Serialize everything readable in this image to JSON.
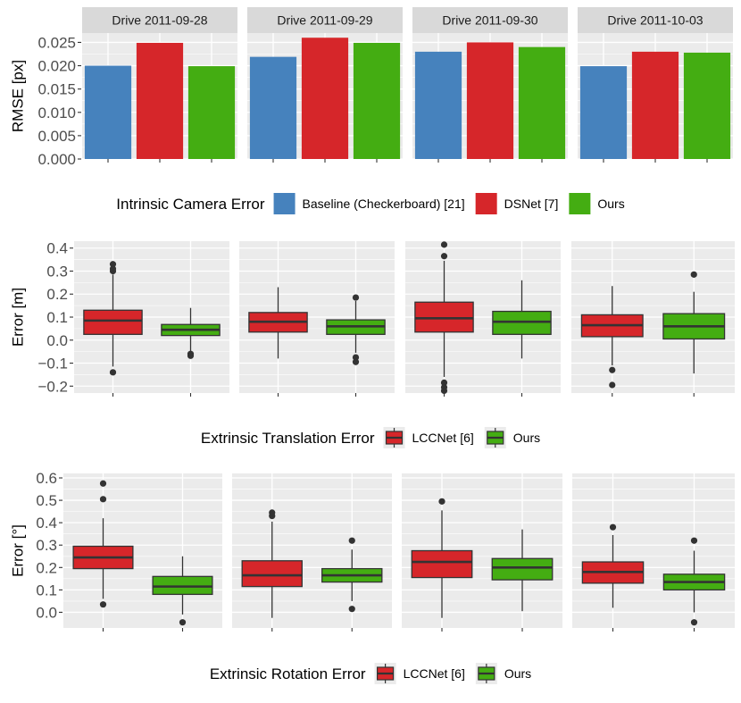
{
  "colors": {
    "baseline": "#4682bd",
    "dsnet": "#d6262a",
    "lccnet": "#d6262a",
    "ours": "#44ad12",
    "panel_bg": "#ebebeb",
    "strip_bg": "#d9d9d9",
    "grid": "#ffffff"
  },
  "chart_data": [
    {
      "type": "bar",
      "ylabel": "RMSE [px]",
      "ylim": [
        0,
        0.027
      ],
      "yticks": [
        0.0,
        0.005,
        0.01,
        0.015,
        0.02,
        0.025
      ],
      "ytick_labels": [
        "0.000",
        "0.005",
        "0.010",
        "0.015",
        "0.020",
        "0.025"
      ],
      "facets": [
        "Drive 2011-09-28",
        "Drive 2011-09-29",
        "Drive 2011-09-30",
        "Drive 2011-10-03"
      ],
      "legend_title": "Intrinsic Camera Error",
      "series": [
        {
          "name": "Baseline (Checkerboard) [21]",
          "color_key": "baseline",
          "values": [
            0.02,
            0.0219,
            0.023,
            0.0199
          ]
        },
        {
          "name": "DSNet [7]",
          "color_key": "dsnet",
          "values": [
            0.0249,
            0.026,
            0.025,
            0.023
          ]
        },
        {
          "name": "Ours",
          "color_key": "ours",
          "values": [
            0.0199,
            0.0249,
            0.024,
            0.0228
          ]
        }
      ]
    },
    {
      "type": "box",
      "ylabel": "Error [m]",
      "ylim": [
        -0.23,
        0.43
      ],
      "yticks": [
        -0.2,
        -0.1,
        0.0,
        0.1,
        0.2,
        0.3,
        0.4
      ],
      "ytick_labels": [
        "−0.2",
        "−0.1",
        "0.0",
        "0.1",
        "0.2",
        "0.3",
        "0.4"
      ],
      "facets": [
        "Drive 2011-09-28",
        "Drive 2011-09-29",
        "Drive 2011-09-30",
        "Drive 2011-10-03"
      ],
      "legend_title": "Extrinsic Translation Error",
      "series": [
        {
          "name": "LCCNet [6]",
          "color_key": "lccnet",
          "boxes": [
            {
              "q1": 0.025,
              "median": 0.085,
              "q3": 0.13,
              "lower": -0.115,
              "upper": 0.285,
              "outliers": [
                0.33,
                0.31,
                0.3,
                -0.14
              ]
            },
            {
              "q1": 0.035,
              "median": 0.08,
              "q3": 0.12,
              "lower": -0.08,
              "upper": 0.23,
              "outliers": []
            },
            {
              "q1": 0.035,
              "median": 0.095,
              "q3": 0.165,
              "lower": -0.16,
              "upper": 0.345,
              "outliers": [
                0.415,
                0.365,
                -0.185,
                -0.205,
                -0.22
              ]
            },
            {
              "q1": 0.015,
              "median": 0.065,
              "q3": 0.11,
              "lower": -0.11,
              "upper": 0.235,
              "outliers": [
                -0.13,
                -0.195
              ]
            }
          ]
        },
        {
          "name": "Ours",
          "color_key": "ours",
          "boxes": [
            {
              "q1": 0.02,
              "median": 0.045,
              "q3": 0.068,
              "lower": -0.05,
              "upper": 0.14,
              "outliers": [
                -0.06,
                -0.068
              ]
            },
            {
              "q1": 0.025,
              "median": 0.06,
              "q3": 0.088,
              "lower": -0.055,
              "upper": 0.17,
              "outliers": [
                0.185,
                -0.075,
                -0.095
              ]
            },
            {
              "q1": 0.025,
              "median": 0.08,
              "q3": 0.125,
              "lower": -0.08,
              "upper": 0.26,
              "outliers": []
            },
            {
              "q1": 0.005,
              "median": 0.06,
              "q3": 0.115,
              "lower": -0.145,
              "upper": 0.21,
              "outliers": [
                0.285
              ]
            }
          ]
        }
      ]
    },
    {
      "type": "box",
      "ylabel": "Error [°]",
      "ylim": [
        -0.07,
        0.62
      ],
      "yticks": [
        0.0,
        0.1,
        0.2,
        0.3,
        0.4,
        0.5,
        0.6
      ],
      "ytick_labels": [
        "0.0",
        "0.1",
        "0.2",
        "0.3",
        "0.4",
        "0.5",
        "0.6"
      ],
      "facets": [
        "Drive 2011-09-28",
        "Drive 2011-09-29",
        "Drive 2011-09-30",
        "Drive 2011-10-03"
      ],
      "legend_title": "Extrinsic Rotation Error",
      "series": [
        {
          "name": "LCCNet [6]",
          "color_key": "lccnet",
          "boxes": [
            {
              "q1": 0.195,
              "median": 0.245,
              "q3": 0.295,
              "lower": 0.06,
              "upper": 0.42,
              "outliers": [
                0.575,
                0.505,
                0.035
              ]
            },
            {
              "q1": 0.115,
              "median": 0.165,
              "q3": 0.23,
              "lower": -0.025,
              "upper": 0.405,
              "outliers": [
                0.445,
                0.43
              ]
            },
            {
              "q1": 0.155,
              "median": 0.225,
              "q3": 0.275,
              "lower": -0.025,
              "upper": 0.455,
              "outliers": [
                0.495
              ]
            },
            {
              "q1": 0.13,
              "median": 0.18,
              "q3": 0.225,
              "lower": 0.02,
              "upper": 0.345,
              "outliers": [
                0.38
              ]
            }
          ]
        },
        {
          "name": "Ours",
          "color_key": "ours",
          "boxes": [
            {
              "q1": 0.08,
              "median": 0.115,
              "q3": 0.16,
              "lower": -0.01,
              "upper": 0.25,
              "outliers": [
                -0.045
              ]
            },
            {
              "q1": 0.135,
              "median": 0.165,
              "q3": 0.195,
              "lower": 0.05,
              "upper": 0.28,
              "outliers": [
                0.32,
                0.015
              ]
            },
            {
              "q1": 0.145,
              "median": 0.2,
              "q3": 0.24,
              "lower": 0.005,
              "upper": 0.37,
              "outliers": []
            },
            {
              "q1": 0.1,
              "median": 0.135,
              "q3": 0.17,
              "lower": 0.0,
              "upper": 0.275,
              "outliers": [
                0.32,
                -0.045
              ]
            }
          ]
        }
      ]
    }
  ]
}
